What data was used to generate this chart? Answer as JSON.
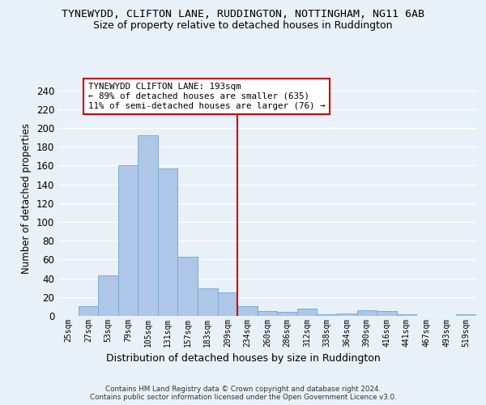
{
  "title": "TYNEWYDD, CLIFTON LANE, RUDDINGTON, NOTTINGHAM, NG11 6AB",
  "subtitle": "Size of property relative to detached houses in Ruddington",
  "xlabel": "Distribution of detached houses by size in Ruddington",
  "ylabel": "Number of detached properties",
  "bar_labels": [
    "25sqm",
    "27sqm",
    "53sqm",
    "79sqm",
    "105sqm",
    "131sqm",
    "157sqm",
    "183sqm",
    "209sqm",
    "234sqm",
    "260sqm",
    "286sqm",
    "312sqm",
    "338sqm",
    "364sqm",
    "390sqm",
    "416sqm",
    "441sqm",
    "467sqm",
    "493sqm",
    "519sqm"
  ],
  "bar_values": [
    0,
    10,
    43,
    160,
    192,
    157,
    63,
    29,
    25,
    10,
    5,
    4,
    8,
    2,
    3,
    6,
    5,
    2,
    0,
    0,
    2
  ],
  "bar_color": "#aec6e8",
  "bar_edge_color": "#7aadd0",
  "vline_color": "#cc0000",
  "vline_pos": 8.5,
  "annotation_title": "TYNEWYDD CLIFTON LANE: 193sqm",
  "annotation_line1": "← 89% of detached houses are smaller (635)",
  "annotation_line2": "11% of semi-detached houses are larger (76) →",
  "annotation_box_facecolor": "#ffffff",
  "annotation_box_edgecolor": "#cc0000",
  "ylim": [
    0,
    250
  ],
  "yticks": [
    0,
    20,
    40,
    60,
    80,
    100,
    120,
    140,
    160,
    180,
    200,
    220,
    240
  ],
  "footer": "Contains HM Land Registry data © Crown copyright and database right 2024.\nContains public sector information licensed under the Open Government Licence v3.0.",
  "bg_color": "#e8f0f8",
  "grid_color": "#ffffff"
}
